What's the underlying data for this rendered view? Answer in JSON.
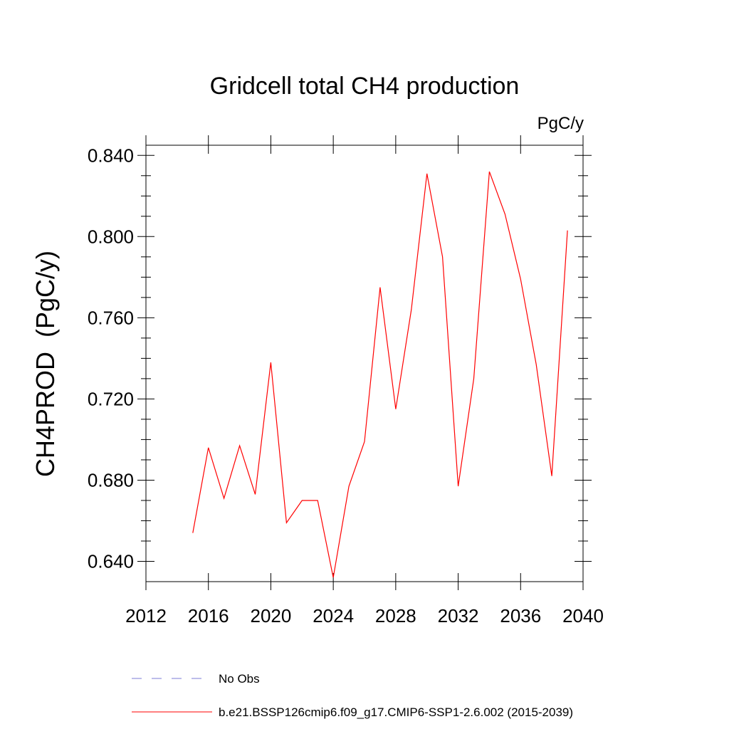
{
  "chart_data": {
    "type": "line",
    "title": "Gridcell total CH4 production",
    "units_label": "PgC/y",
    "ylabel": "CH4PROD  (PgC/y)",
    "xlabel": "",
    "xlim": [
      2012,
      2040
    ],
    "ylim": [
      0.63,
      0.845
    ],
    "x_ticks": [
      2012,
      2016,
      2020,
      2024,
      2028,
      2032,
      2036,
      2040
    ],
    "x_tick_labels": [
      "2012",
      "2016",
      "2020",
      "2024",
      "2028",
      "2032",
      "2036",
      "2040"
    ],
    "y_ticks": [
      0.64,
      0.68,
      0.72,
      0.76,
      0.8,
      0.84
    ],
    "y_tick_labels": [
      "0.640",
      "0.680",
      "0.720",
      "0.760",
      "0.800",
      "0.840"
    ],
    "grid": false,
    "legend_position": "bottom-left",
    "series": [
      {
        "name": "b.e21.BSSP126cmip6.f09_g17.CMIP6-SSP1-2.6.002 (2015-2039)",
        "color": "#ff0000",
        "style": "solid",
        "x": [
          2015,
          2016,
          2017,
          2018,
          2019,
          2020,
          2021,
          2022,
          2023,
          2024,
          2025,
          2026,
          2027,
          2028,
          2029,
          2030,
          2031,
          2032,
          2033,
          2034,
          2035,
          2036,
          2037,
          2038,
          2039
        ],
        "values": [
          0.654,
          0.696,
          0.671,
          0.697,
          0.673,
          0.738,
          0.659,
          0.67,
          0.67,
          0.632,
          0.677,
          0.699,
          0.775,
          0.715,
          0.764,
          0.831,
          0.79,
          0.677,
          0.73,
          0.832,
          0.811,
          0.779,
          0.737,
          0.682,
          0.803
        ]
      },
      {
        "name": "No Obs",
        "color": "#7b7bd6",
        "style": "dashed",
        "x": [],
        "values": []
      }
    ]
  }
}
